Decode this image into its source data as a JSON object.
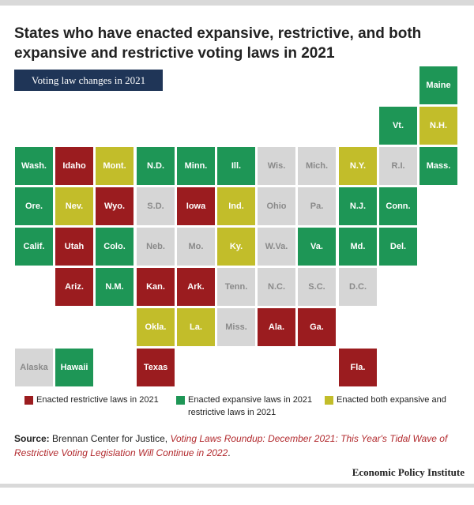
{
  "title": "States who have enacted expansive, restrictive, and both expansive and restrictive voting laws in 2021",
  "tag": "Voting law changes in 2021",
  "colors": {
    "expansive": "#1e9656",
    "restrictive": "#9b1c1f",
    "both": "#c2bd2a",
    "none": "#d6d6d6"
  },
  "legend": [
    {
      "key": "restrictive",
      "label": "Enacted restrictive laws in 2021"
    },
    {
      "key": "expansive",
      "label": "Enacted expansive laws in 2021"
    },
    {
      "key": "both",
      "label_line1": "Enacted both expansive and",
      "label_line2": "restrictive laws in 2021"
    }
  ],
  "states": [
    {
      "abbr": "Maine",
      "row": 0,
      "col": 10,
      "status": "expansive"
    },
    {
      "abbr": "Vt.",
      "row": 1,
      "col": 9,
      "status": "expansive"
    },
    {
      "abbr": "N.H.",
      "row": 1,
      "col": 10,
      "status": "both"
    },
    {
      "abbr": "Wash.",
      "row": 2,
      "col": 0,
      "status": "expansive"
    },
    {
      "abbr": "Idaho",
      "row": 2,
      "col": 1,
      "status": "restrictive"
    },
    {
      "abbr": "Mont.",
      "row": 2,
      "col": 2,
      "status": "both"
    },
    {
      "abbr": "N.D.",
      "row": 2,
      "col": 3,
      "status": "expansive"
    },
    {
      "abbr": "Minn.",
      "row": 2,
      "col": 4,
      "status": "expansive"
    },
    {
      "abbr": "Ill.",
      "row": 2,
      "col": 5,
      "status": "expansive"
    },
    {
      "abbr": "Wis.",
      "row": 2,
      "col": 6,
      "status": "none"
    },
    {
      "abbr": "Mich.",
      "row": 2,
      "col": 7,
      "status": "none"
    },
    {
      "abbr": "N.Y.",
      "row": 2,
      "col": 8,
      "status": "both"
    },
    {
      "abbr": "R.I.",
      "row": 2,
      "col": 9,
      "status": "none"
    },
    {
      "abbr": "Mass.",
      "row": 2,
      "col": 10,
      "status": "expansive"
    },
    {
      "abbr": "Ore.",
      "row": 3,
      "col": 0,
      "status": "expansive"
    },
    {
      "abbr": "Nev.",
      "row": 3,
      "col": 1,
      "status": "both"
    },
    {
      "abbr": "Wyo.",
      "row": 3,
      "col": 2,
      "status": "restrictive"
    },
    {
      "abbr": "S.D.",
      "row": 3,
      "col": 3,
      "status": "none"
    },
    {
      "abbr": "Iowa",
      "row": 3,
      "col": 4,
      "status": "restrictive"
    },
    {
      "abbr": "Ind.",
      "row": 3,
      "col": 5,
      "status": "both"
    },
    {
      "abbr": "Ohio",
      "row": 3,
      "col": 6,
      "status": "none"
    },
    {
      "abbr": "Pa.",
      "row": 3,
      "col": 7,
      "status": "none"
    },
    {
      "abbr": "N.J.",
      "row": 3,
      "col": 8,
      "status": "expansive"
    },
    {
      "abbr": "Conn.",
      "row": 3,
      "col": 9,
      "status": "expansive"
    },
    {
      "abbr": "Calif.",
      "row": 4,
      "col": 0,
      "status": "expansive"
    },
    {
      "abbr": "Utah",
      "row": 4,
      "col": 1,
      "status": "restrictive"
    },
    {
      "abbr": "Colo.",
      "row": 4,
      "col": 2,
      "status": "expansive"
    },
    {
      "abbr": "Neb.",
      "row": 4,
      "col": 3,
      "status": "none"
    },
    {
      "abbr": "Mo.",
      "row": 4,
      "col": 4,
      "status": "none"
    },
    {
      "abbr": "Ky.",
      "row": 4,
      "col": 5,
      "status": "both"
    },
    {
      "abbr": "W.Va.",
      "row": 4,
      "col": 6,
      "status": "none"
    },
    {
      "abbr": "Va.",
      "row": 4,
      "col": 7,
      "status": "expansive"
    },
    {
      "abbr": "Md.",
      "row": 4,
      "col": 8,
      "status": "expansive"
    },
    {
      "abbr": "Del.",
      "row": 4,
      "col": 9,
      "status": "expansive"
    },
    {
      "abbr": "Ariz.",
      "row": 5,
      "col": 1,
      "status": "restrictive"
    },
    {
      "abbr": "N.M.",
      "row": 5,
      "col": 2,
      "status": "expansive"
    },
    {
      "abbr": "Kan.",
      "row": 5,
      "col": 3,
      "status": "restrictive"
    },
    {
      "abbr": "Ark.",
      "row": 5,
      "col": 4,
      "status": "restrictive"
    },
    {
      "abbr": "Tenn.",
      "row": 5,
      "col": 5,
      "status": "none"
    },
    {
      "abbr": "N.C.",
      "row": 5,
      "col": 6,
      "status": "none"
    },
    {
      "abbr": "S.C.",
      "row": 5,
      "col": 7,
      "status": "none"
    },
    {
      "abbr": "D.C.",
      "row": 5,
      "col": 8,
      "status": "none"
    },
    {
      "abbr": "Okla.",
      "row": 6,
      "col": 3,
      "status": "both"
    },
    {
      "abbr": "La.",
      "row": 6,
      "col": 4,
      "status": "both"
    },
    {
      "abbr": "Miss.",
      "row": 6,
      "col": 5,
      "status": "none"
    },
    {
      "abbr": "Ala.",
      "row": 6,
      "col": 6,
      "status": "restrictive"
    },
    {
      "abbr": "Ga.",
      "row": 6,
      "col": 7,
      "status": "restrictive"
    },
    {
      "abbr": "Alaska",
      "row": 7,
      "col": 0,
      "status": "none"
    },
    {
      "abbr": "Hawaii",
      "row": 7,
      "col": 1,
      "status": "expansive"
    },
    {
      "abbr": "Texas",
      "row": 7,
      "col": 3,
      "status": "restrictive"
    },
    {
      "abbr": "Fla.",
      "row": 7,
      "col": 8,
      "status": "restrictive"
    }
  ],
  "source": {
    "label": "Source:",
    "text": "Brennan Center for Justice,",
    "citation": "Voting Laws Roundup: December 2021: This Year's Tidal Wave of Restrictive Voting Legislation Will Continue in 2022",
    "end": "."
  },
  "publisher": "Economic Policy Institute"
}
